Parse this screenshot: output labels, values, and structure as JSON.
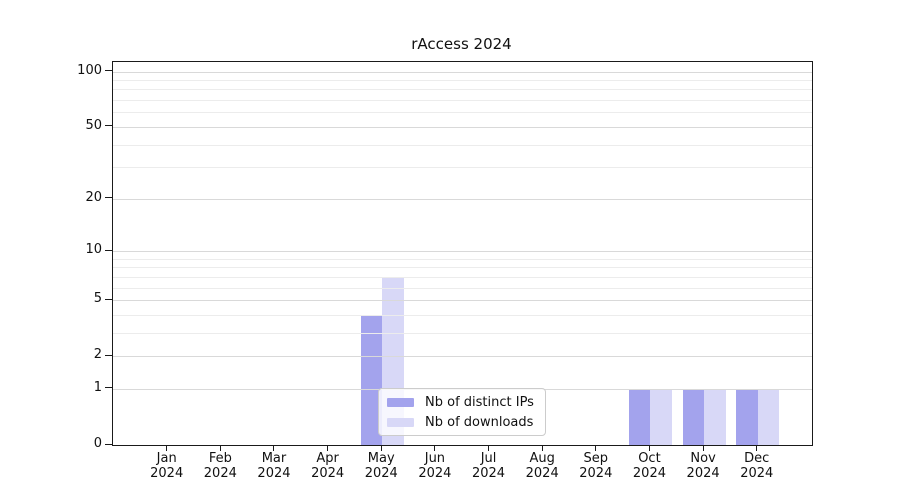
{
  "chart_data": {
    "type": "bar",
    "title": "rAccess 2024",
    "x": {
      "categories": [
        "Jan",
        "Feb",
        "Mar",
        "Apr",
        "May",
        "Jun",
        "Jul",
        "Aug",
        "Sep",
        "Oct",
        "Nov",
        "Dec"
      ],
      "year_label": "2024"
    },
    "y_axis": {
      "scale": "log1p",
      "major_ticks": [
        0,
        1,
        2,
        5,
        10,
        20,
        50,
        100
      ],
      "minor_gridlines": [
        3,
        4,
        6,
        7,
        8,
        9,
        30,
        40,
        60,
        70,
        80,
        90
      ],
      "ylim": [
        0,
        113
      ]
    },
    "series": [
      {
        "name": "Nb of distinct IPs",
        "color": "#a3a3ed",
        "values": [
          0,
          0,
          0,
          0,
          4,
          0,
          0,
          0,
          0,
          1,
          1,
          1
        ]
      },
      {
        "name": "Nb of downloads",
        "color": "#d8d8f7",
        "values": [
          0,
          0,
          0,
          0,
          7,
          0,
          0,
          0,
          0,
          1,
          1,
          1
        ]
      }
    ],
    "grid": true,
    "legend": {
      "position": "lower-center",
      "frame_alpha": 0.8
    }
  }
}
